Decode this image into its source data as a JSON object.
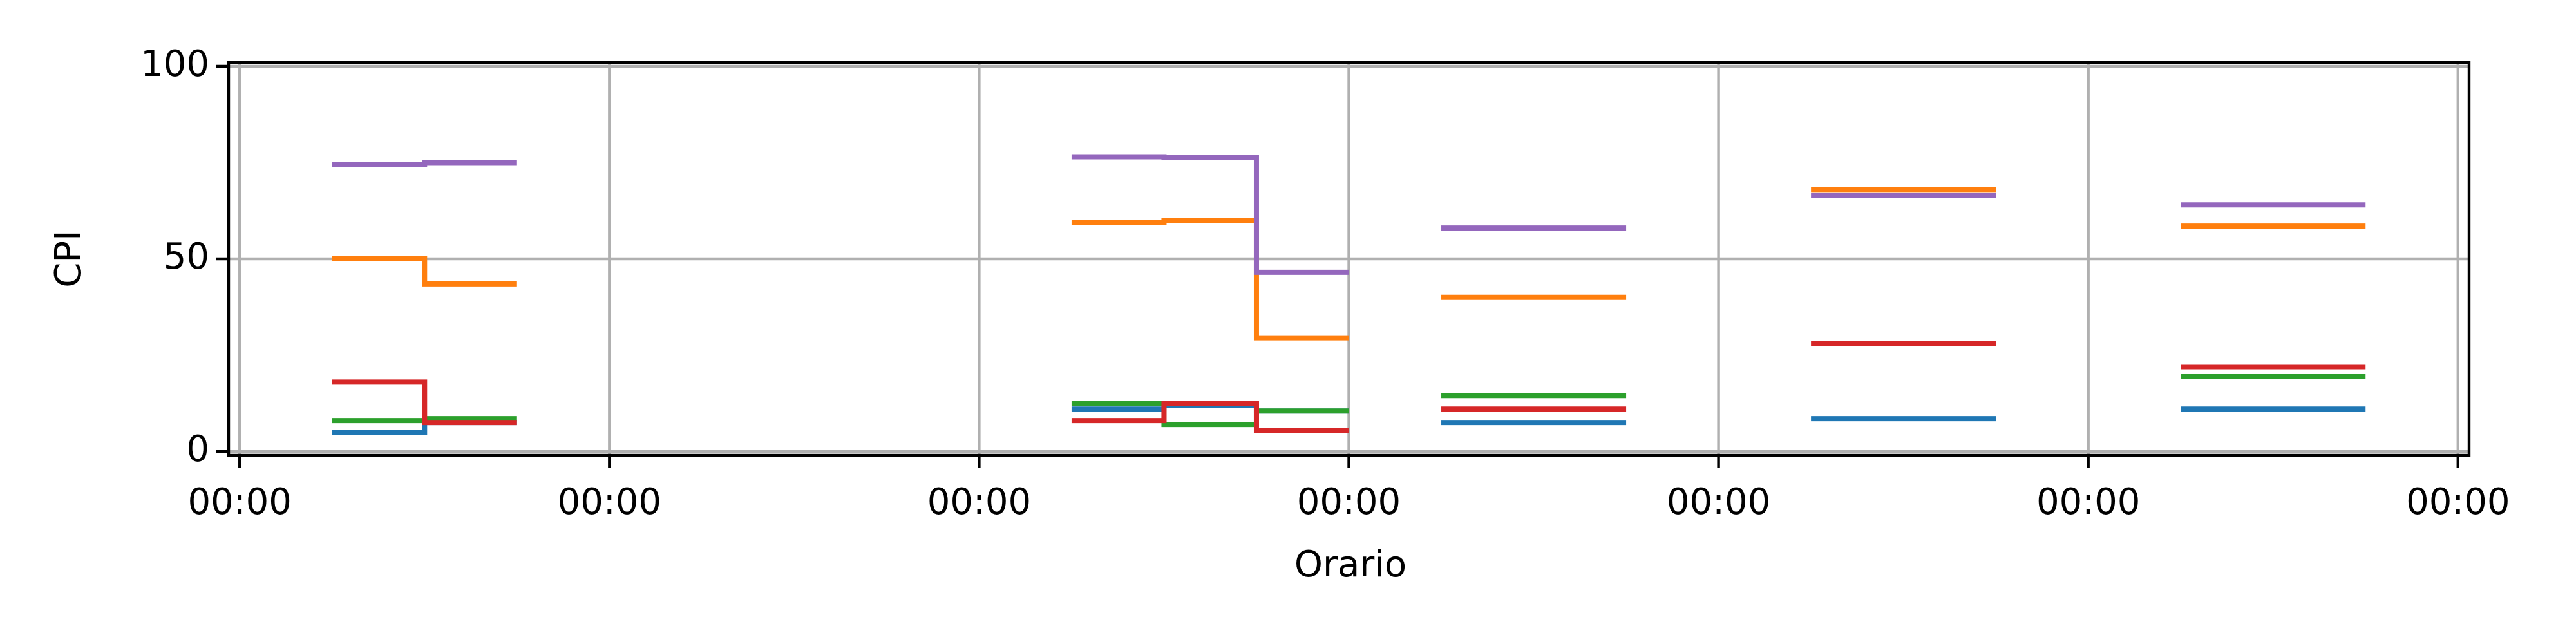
{
  "chart_data": {
    "type": "line",
    "drawstyle": "steps-post",
    "x_label": "Orario",
    "y_label": "CPI",
    "x": [
      0.25,
      0.5,
      0.75,
      null,
      2.25,
      2.5,
      2.75,
      3.0,
      null,
      3.25,
      3.75,
      null,
      4.25,
      4.75,
      null,
      5.25,
      5.75
    ],
    "series": [
      {
        "color": "#1f77b4",
        "values": [
          5,
          7.5,
          7.5,
          null,
          11,
          12,
          10.5,
          10.5,
          null,
          7.5,
          7.5,
          null,
          8.5,
          8.5,
          null,
          11,
          11
        ]
      },
      {
        "color": "#ff7f0e",
        "values": [
          50,
          43.5,
          43.5,
          null,
          59.5,
          60,
          29.5,
          29.5,
          null,
          40,
          40,
          null,
          68,
          68,
          null,
          58.5,
          58.5
        ]
      },
      {
        "color": "#2ca02c",
        "values": [
          8,
          8.5,
          8.5,
          null,
          12.5,
          7,
          10.5,
          10.5,
          null,
          14.5,
          14.5,
          null,
          null,
          null,
          null,
          19.5,
          19.5
        ]
      },
      {
        "color": "#d62728",
        "values": [
          18,
          7.5,
          7.5,
          null,
          8,
          12.5,
          5.5,
          5.5,
          null,
          11,
          11,
          null,
          28,
          28,
          null,
          22,
          22
        ]
      },
      {
        "color": "#9467bd",
        "values": [
          74.5,
          75,
          75,
          null,
          76.5,
          76.3,
          46.5,
          46.5,
          null,
          58,
          58,
          null,
          66.5,
          66.5,
          null,
          64,
          64
        ]
      }
    ],
    "xlim": [
      -0.03,
      6.03
    ],
    "xticks": [
      {
        "value": 0,
        "label": "00:00"
      },
      {
        "value": 1,
        "label": "00:00"
      },
      {
        "value": 2,
        "label": "00:00"
      },
      {
        "value": 3,
        "label": "00:00"
      },
      {
        "value": 4,
        "label": "00:00"
      },
      {
        "value": 5,
        "label": "00:00"
      },
      {
        "value": 6,
        "label": "00:00"
      }
    ],
    "ylim": [
      -1,
      101
    ],
    "yticks": [
      0,
      50,
      100
    ],
    "grid": true
  }
}
